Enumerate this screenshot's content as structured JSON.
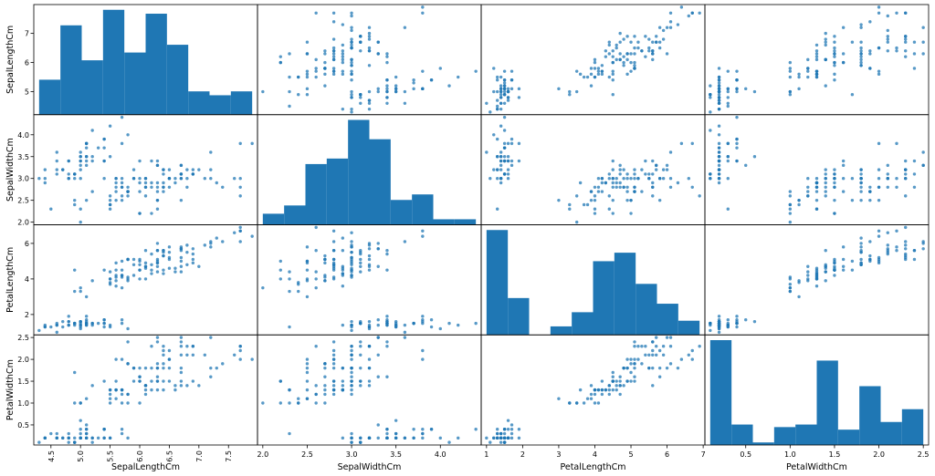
{
  "chart_data": {
    "type": "scatter_matrix",
    "color": "#1f77b4",
    "variables": [
      {
        "name": "SepalLengthCm",
        "lim": [
          4.21,
          7.99
        ],
        "xticks": [
          4.5,
          {
            "value": 5,
            "label": "5.0"
          },
          5.5,
          {
            "value": 6,
            "label": "6.0"
          },
          6.5,
          {
            "value": 7,
            "label": "7.0"
          },
          7.5
        ],
        "yticks": [
          5,
          6,
          7
        ],
        "hist": {
          "bins": [
            4.3,
            4.66,
            5.02,
            5.38,
            5.74,
            6.1,
            6.46,
            6.82,
            7.18,
            7.54,
            7.9
          ],
          "counts": [
            9,
            23,
            14,
            27,
            16,
            26,
            18,
            6,
            5,
            6
          ],
          "count_lim": [
            0,
            28.35
          ]
        },
        "values": [
          5.1,
          4.9,
          4.7,
          4.6,
          5.0,
          5.4,
          4.6,
          5.0,
          4.4,
          4.9,
          5.4,
          4.8,
          4.8,
          4.3,
          5.8,
          5.7,
          5.4,
          5.1,
          5.7,
          5.1,
          5.4,
          5.1,
          4.6,
          5.1,
          4.8,
          5.0,
          5.0,
          5.2,
          5.2,
          4.7,
          4.8,
          5.4,
          5.2,
          5.5,
          4.9,
          5.0,
          5.5,
          4.9,
          4.4,
          5.1,
          5.0,
          4.5,
          4.4,
          5.0,
          5.1,
          4.8,
          5.1,
          4.6,
          5.3,
          5.0,
          7.0,
          6.4,
          6.9,
          5.5,
          6.5,
          5.7,
          6.3,
          4.9,
          6.6,
          5.2,
          5.0,
          5.9,
          6.0,
          6.1,
          5.6,
          6.7,
          5.6,
          5.8,
          6.2,
          5.6,
          5.9,
          6.1,
          6.3,
          6.1,
          6.4,
          6.6,
          6.8,
          6.7,
          6.0,
          5.7,
          5.5,
          5.5,
          5.8,
          6.0,
          5.4,
          6.0,
          6.7,
          6.3,
          5.6,
          5.5,
          5.5,
          6.1,
          5.8,
          5.0,
          5.6,
          5.7,
          5.7,
          6.2,
          5.1,
          5.7,
          6.3,
          5.8,
          7.1,
          6.3,
          6.5,
          7.6,
          4.9,
          7.3,
          6.7,
          7.2,
          6.5,
          6.4,
          6.8,
          5.7,
          5.8,
          6.4,
          6.5,
          7.7,
          7.7,
          6.0,
          6.9,
          5.6,
          7.7,
          6.3,
          6.7,
          7.2,
          6.2,
          6.1,
          6.4,
          7.2,
          7.4,
          7.9,
          6.4,
          6.3,
          6.1,
          7.7,
          6.3,
          6.4,
          6.0,
          6.9,
          6.7,
          6.9,
          5.8,
          6.8,
          6.7,
          6.7,
          6.3,
          6.5,
          6.2,
          5.9
        ]
      },
      {
        "name": "SepalWidthCm",
        "lim": [
          1.94,
          4.46
        ],
        "xticks": [
          {
            "value": 2,
            "label": "2.0"
          },
          2.5,
          {
            "value": 3,
            "label": "3.0"
          },
          3.5,
          {
            "value": 4,
            "label": "4.0"
          }
        ],
        "yticks": [
          {
            "value": 2,
            "label": "2.0"
          },
          2.5,
          {
            "value": 3,
            "label": "3.0"
          },
          3.5,
          {
            "value": 4,
            "label": "4.0"
          }
        ],
        "hist": {
          "bins": [
            2.0,
            2.24,
            2.48,
            2.72,
            2.96,
            3.2,
            3.44,
            3.68,
            3.92,
            4.16,
            4.4
          ],
          "counts": [
            4,
            7,
            22,
            24,
            38,
            31,
            9,
            11,
            2,
            2
          ],
          "count_lim": [
            0,
            39.9
          ]
        },
        "values": [
          3.5,
          3.0,
          3.2,
          3.1,
          3.6,
          3.9,
          3.4,
          3.4,
          2.9,
          3.1,
          3.7,
          3.4,
          3.0,
          3.0,
          4.0,
          4.4,
          3.9,
          3.5,
          3.8,
          3.8,
          3.4,
          3.7,
          3.6,
          3.3,
          3.4,
          3.0,
          3.4,
          3.5,
          3.4,
          3.2,
          3.1,
          3.4,
          4.1,
          4.2,
          3.1,
          3.2,
          3.5,
          3.1,
          3.0,
          3.4,
          3.5,
          2.3,
          3.2,
          3.5,
          3.8,
          3.0,
          3.8,
          3.2,
          3.7,
          3.3,
          3.2,
          3.2,
          3.1,
          2.3,
          2.8,
          2.8,
          3.3,
          2.4,
          2.9,
          2.7,
          2.0,
          3.0,
          2.2,
          2.9,
          2.9,
          3.1,
          3.0,
          2.7,
          2.2,
          2.5,
          3.2,
          2.8,
          2.5,
          2.8,
          2.9,
          3.0,
          2.8,
          3.0,
          2.9,
          2.6,
          2.4,
          2.4,
          2.7,
          2.7,
          3.0,
          3.4,
          3.1,
          2.3,
          3.0,
          2.5,
          2.6,
          3.0,
          2.6,
          2.3,
          2.7,
          3.0,
          2.9,
          2.9,
          2.5,
          2.8,
          3.3,
          2.7,
          3.0,
          2.9,
          3.0,
          3.0,
          2.5,
          2.9,
          2.5,
          3.6,
          3.2,
          2.7,
          3.0,
          2.5,
          2.8,
          3.2,
          3.0,
          3.8,
          2.6,
          2.2,
          3.2,
          2.8,
          2.8,
          2.7,
          3.3,
          3.2,
          2.8,
          3.0,
          2.8,
          3.0,
          2.8,
          3.8,
          2.8,
          2.8,
          2.6,
          3.0,
          3.4,
          3.1,
          3.0,
          3.1,
          3.1,
          3.1,
          2.7,
          3.2,
          3.3,
          3.0,
          2.5,
          3.0,
          3.4,
          3.0
        ]
      },
      {
        "name": "PetalLengthCm",
        "lim": [
          0.8525,
          7.0475
        ],
        "xticks": [
          1,
          2,
          3,
          4,
          5,
          6,
          7
        ],
        "yticks": [
          2,
          4,
          6
        ],
        "hist": {
          "bins": [
            1.0,
            1.59,
            2.18,
            2.77,
            3.36,
            3.95,
            4.54,
            5.13,
            5.72,
            6.31,
            6.9
          ],
          "counts": [
            37,
            13,
            0,
            3,
            8,
            26,
            29,
            18,
            11,
            5
          ],
          "count_lim": [
            0,
            38.85
          ]
        },
        "values": [
          1.4,
          1.4,
          1.3,
          1.5,
          1.4,
          1.7,
          1.4,
          1.5,
          1.4,
          1.5,
          1.5,
          1.6,
          1.4,
          1.1,
          1.2,
          1.5,
          1.3,
          1.4,
          1.7,
          1.5,
          1.7,
          1.5,
          1.0,
          1.7,
          1.9,
          1.6,
          1.6,
          1.5,
          1.4,
          1.6,
          1.6,
          1.5,
          1.5,
          1.4,
          1.5,
          1.2,
          1.3,
          1.5,
          1.3,
          1.5,
          1.3,
          1.3,
          1.3,
          1.6,
          1.9,
          1.4,
          1.6,
          1.4,
          1.5,
          1.4,
          4.7,
          4.5,
          4.9,
          4.0,
          4.6,
          4.5,
          4.7,
          3.3,
          4.6,
          3.9,
          3.5,
          4.2,
          4.0,
          4.7,
          3.6,
          4.4,
          4.5,
          4.1,
          4.5,
          3.9,
          4.8,
          4.0,
          4.9,
          4.7,
          4.3,
          4.4,
          4.8,
          5.0,
          4.5,
          3.5,
          3.8,
          3.7,
          3.9,
          5.1,
          4.5,
          4.5,
          4.7,
          4.4,
          4.1,
          4.0,
          4.4,
          4.6,
          4.0,
          3.3,
          4.2,
          4.2,
          4.2,
          4.3,
          3.0,
          4.1,
          6.0,
          5.1,
          5.9,
          5.6,
          5.8,
          6.6,
          4.5,
          6.3,
          5.8,
          6.1,
          5.1,
          5.3,
          5.5,
          5.0,
          5.1,
          5.3,
          5.5,
          6.7,
          6.9,
          5.0,
          5.7,
          4.9,
          6.7,
          4.9,
          5.7,
          6.0,
          4.8,
          4.9,
          5.6,
          5.8,
          6.1,
          6.4,
          5.6,
          5.1,
          5.6,
          6.1,
          5.6,
          5.5,
          4.8,
          5.4,
          5.6,
          5.1,
          5.1,
          5.9,
          5.7,
          5.2,
          5.0,
          5.2,
          5.4,
          5.1
        ]
      },
      {
        "name": "PetalWidthCm",
        "lim": [
          0.04,
          2.56
        ],
        "xticks": [
          0.5,
          {
            "value": 1,
            "label": "1.0"
          },
          1.5,
          {
            "value": 2,
            "label": "2.0"
          },
          2.5
        ],
        "yticks": [
          0.5,
          {
            "value": 1,
            "label": "1.0"
          },
          1.5,
          {
            "value": 2,
            "label": "2.0"
          },
          2.5
        ],
        "hist": {
          "bins": [
            0.1,
            0.34,
            0.58,
            0.82,
            1.06,
            1.3,
            1.54,
            1.78,
            2.02,
            2.26,
            2.5
          ],
          "counts": [
            41,
            8,
            1,
            7,
            8,
            33,
            6,
            23,
            9,
            14
          ],
          "count_lim": [
            0,
            43.05
          ]
        },
        "values": [
          0.2,
          0.2,
          0.2,
          0.2,
          0.2,
          0.4,
          0.3,
          0.2,
          0.2,
          0.1,
          0.2,
          0.2,
          0.1,
          0.1,
          0.2,
          0.4,
          0.4,
          0.3,
          0.3,
          0.3,
          0.2,
          0.4,
          0.2,
          0.5,
          0.2,
          0.2,
          0.4,
          0.2,
          0.2,
          0.2,
          0.2,
          0.4,
          0.1,
          0.2,
          0.1,
          0.2,
          0.2,
          0.1,
          0.2,
          0.2,
          0.3,
          0.3,
          0.2,
          0.6,
          0.4,
          0.3,
          0.2,
          0.2,
          0.2,
          0.2,
          1.4,
          1.5,
          1.5,
          1.3,
          1.5,
          1.3,
          1.6,
          1.0,
          1.3,
          1.4,
          1.0,
          1.5,
          1.0,
          1.4,
          1.3,
          1.4,
          1.5,
          1.0,
          1.5,
          1.1,
          1.8,
          1.3,
          1.5,
          1.2,
          1.3,
          1.4,
          1.4,
          1.7,
          1.5,
          1.0,
          1.1,
          1.0,
          1.2,
          1.6,
          1.5,
          1.6,
          1.5,
          1.3,
          1.3,
          1.3,
          1.2,
          1.4,
          1.2,
          1.0,
          1.3,
          1.2,
          1.3,
          1.3,
          1.1,
          1.3,
          2.5,
          1.9,
          2.1,
          1.8,
          2.2,
          2.1,
          1.7,
          1.8,
          1.8,
          2.5,
          2.0,
          1.9,
          2.1,
          2.0,
          2.4,
          2.3,
          1.8,
          2.2,
          2.3,
          1.5,
          2.3,
          2.0,
          2.0,
          1.8,
          2.1,
          1.8,
          1.8,
          1.8,
          2.1,
          1.6,
          1.9,
          2.0,
          2.2,
          1.5,
          1.4,
          2.3,
          2.4,
          1.8,
          1.8,
          2.1,
          2.4,
          2.3,
          1.9,
          2.3,
          2.5,
          2.3,
          1.9,
          2.0,
          2.3,
          1.8
        ]
      }
    ]
  }
}
